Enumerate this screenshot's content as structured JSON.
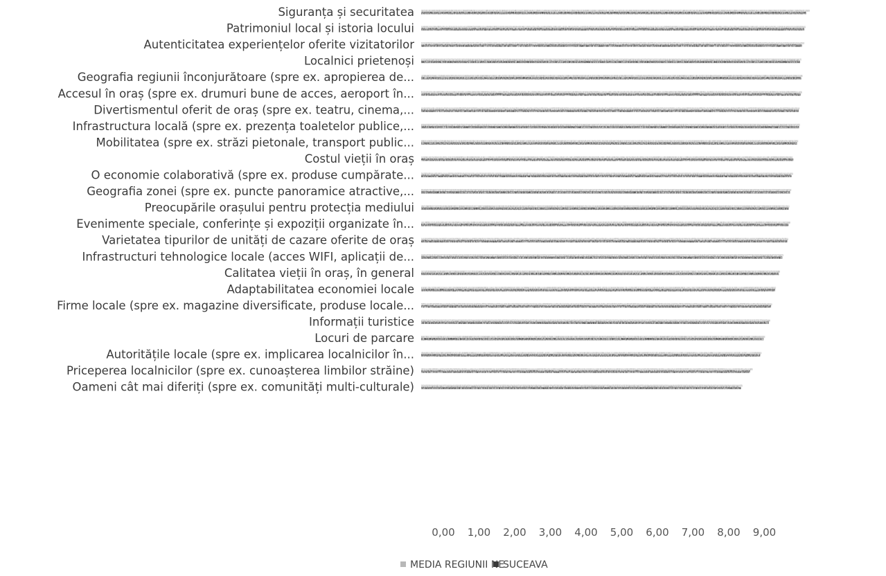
{
  "chart_data": {
    "type": "bar",
    "orientation": "horizontal",
    "categories": [
      "Siguranța și securitatea",
      "Patrimoniul local și istoria locului",
      "Autenticitatea experiențelor oferite vizitatorilor",
      "Localnici prietenoși",
      "Geografia regiunii înconjurătoare (spre ex. apropierea de...",
      "Accesul în oraș (spre ex. drumuri bune de acces, aeroport în...",
      "Divertismentul oferit de oraș (spre ex. teatru, cinema,...",
      "Infrastructura locală (spre ex. prezența toaletelor publice,...",
      "Mobilitatea (spre ex. străzi pietonale, transport public...",
      "Costul vieții în oraș",
      "O economie colaborativă (spre ex. produse cumpărate...",
      "Geografia zonei (spre ex. puncte panoramice atractive,...",
      "Preocupările orașului pentru protecția mediului",
      "Evenimente speciale, conferințe și expoziții organizate în...",
      "Varietatea tipurilor de unități de cazare oferite de oraș",
      "Infrastructuri tehnologice locale (acces WIFI, aplicații de...",
      "Calitatea vieții în oraș, în general",
      "Adaptabilitatea economiei locale",
      "Firme locale (spre ex. magazine diversificate, produse locale...",
      "Informații turistice",
      "Locuri de parcare",
      "Autoritățile locale (spre ex. implicarea localnicilor în...",
      "Priceperea localnicilor (spre ex. cunoașterea limbilor străine)",
      "Oameni cât mai diferiți (spre ex. comunități multi-culturale)"
    ],
    "series": [
      {
        "name": "MEDIA REGIUNII NE",
        "color": "#b8b8b8",
        "values": [
          8.88,
          8.79,
          8.76,
          8.69,
          8.72,
          8.71,
          8.65,
          8.66,
          8.62,
          8.49,
          8.5,
          8.46,
          8.42,
          8.44,
          8.39,
          8.28,
          8.2,
          8.11,
          8.02,
          7.98,
          7.86,
          7.78,
          7.58,
          7.35
        ]
      },
      {
        "name": "SUCEAVA",
        "color": "#3a3a3a",
        "values": [
          8.8,
          8.76,
          8.71,
          8.66,
          8.69,
          8.68,
          8.63,
          8.64,
          8.59,
          8.51,
          8.47,
          8.43,
          8.4,
          8.4,
          8.37,
          8.26,
          8.18,
          8.09,
          8.0,
          7.95,
          7.83,
          7.75,
          7.52,
          7.31
        ]
      }
    ],
    "x_ticks": [
      "0,00",
      "1,00",
      "2,00",
      "3,00",
      "4,00",
      "5,00",
      "6,00",
      "7,00",
      "8,00",
      "9,00"
    ],
    "xlim": [
      0,
      9
    ],
    "grid": false,
    "legend_position": "bottom",
    "title": "",
    "xlabel": "",
    "ylabel": ""
  }
}
